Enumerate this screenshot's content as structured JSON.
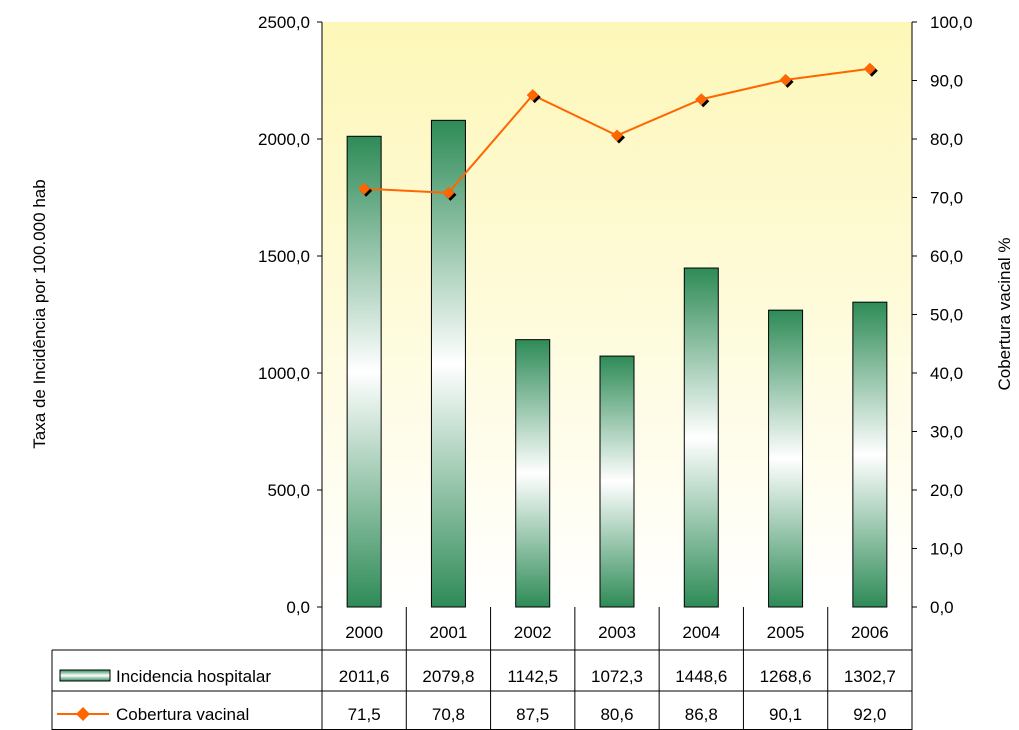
{
  "chart_data": {
    "type": "bar",
    "categories": [
      "2000",
      "2001",
      "2002",
      "2003",
      "2004",
      "2005",
      "2006"
    ],
    "series": [
      {
        "name": "Incidencia hospitalar",
        "type": "bar",
        "axis": "left",
        "values": [
          2011.6,
          2079.8,
          1142.5,
          1072.3,
          1448.6,
          1268.6,
          1302.7
        ],
        "labels": [
          "2011,6",
          "2079,8",
          "1142,5",
          "1072,3",
          "1448,6",
          "1268,6",
          "1302,7"
        ]
      },
      {
        "name": "Cobertura vacinal",
        "type": "line",
        "axis": "right",
        "values": [
          71.5,
          70.8,
          87.5,
          80.6,
          86.8,
          90.1,
          92.0
        ],
        "labels": [
          "71,5",
          "70,8",
          "87,5",
          "80,6",
          "86,8",
          "90,1",
          "92,0"
        ]
      }
    ],
    "ylabel": "Taxa de Incidência por 100.000 hab",
    "y2label": "Cobertura vacinal %",
    "ylim": [
      0,
      2500
    ],
    "y2lim": [
      0,
      100
    ],
    "yticks": [
      "0,0",
      "500,0",
      "1000,0",
      "1500,0",
      "2000,0",
      "2500,0"
    ],
    "y2ticks": [
      "0,0",
      "10,0",
      "20,0",
      "30,0",
      "40,0",
      "50,0",
      "60,0",
      "70,0",
      "80,0",
      "90,0",
      "100,0"
    ],
    "legend": "data-table-bottom",
    "grid": false,
    "colors": {
      "bar_dark": "#2e8b57",
      "bar_light": "#ffffff",
      "line": "#ff6600",
      "marker_shadow": "#000000",
      "plot_top": "#fdf7b8",
      "plot_bottom": "#ffffff"
    }
  }
}
